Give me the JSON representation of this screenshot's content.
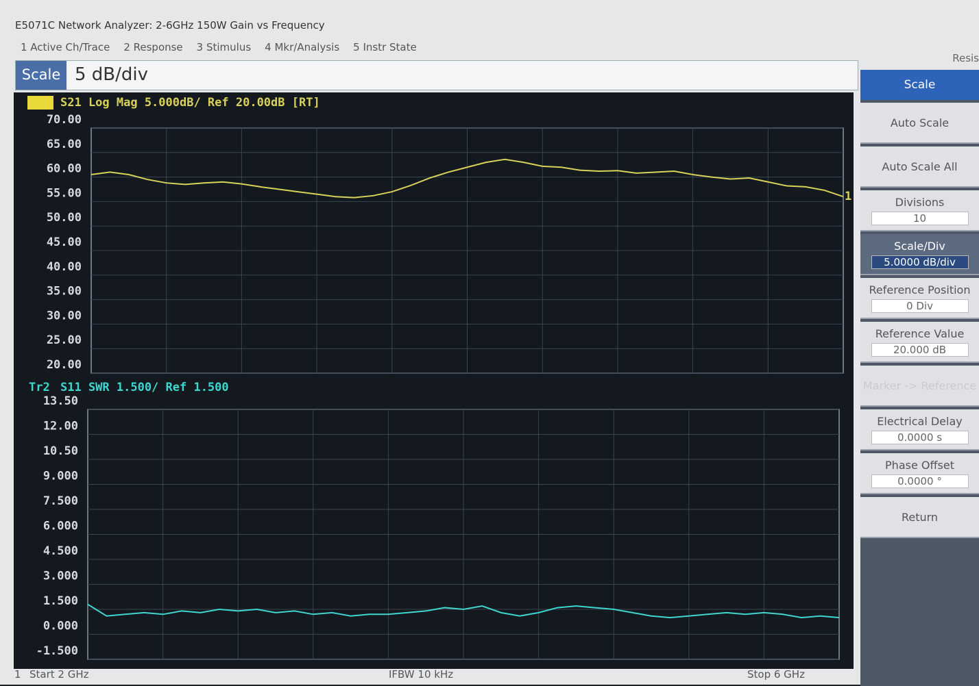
{
  "window_title": "E5071C Network Analyzer: 2-6GHz 150W Gain vs Frequency",
  "menu": [
    "1 Active Ch/Trace",
    "2 Response",
    "3 Stimulus",
    "4 Mkr/Analysis",
    "5 Instr State"
  ],
  "menu_overflow": "Resis",
  "entry": {
    "label": "Scale",
    "value": "5 dB/div"
  },
  "softkeys": {
    "title": "Scale",
    "keys": [
      {
        "label": "Auto Scale"
      },
      {
        "label": "Auto Scale All"
      },
      {
        "label": "Divisions",
        "value": "10"
      },
      {
        "label": "Scale/Div",
        "value": "5.0000 dB/div",
        "active": true
      },
      {
        "label": "Reference Position",
        "value": "0 Div"
      },
      {
        "label": "Reference Value",
        "value": "20.000 dB"
      },
      {
        "label": "Marker -> Reference",
        "enabled": false
      },
      {
        "label": "Electrical Delay",
        "value": "0.0000 s"
      },
      {
        "label": "Phase Offset",
        "value": "0.0000 °"
      },
      {
        "label": "Return"
      }
    ]
  },
  "status": {
    "channel": "1",
    "start": "Start 2 GHz",
    "ifbw": "IFBW 10 kHz",
    "stop": "Stop 6 GHz"
  },
  "chart_data": [
    {
      "type": "line",
      "trace_id": "Tr1",
      "trace_label": "S21 Log Mag 5.000dB/ Ref 20.00dB [RT]",
      "marker_label": "1",
      "color": "#d8d25a",
      "grid": true,
      "xlim": [
        2,
        6
      ],
      "x": [
        2.0,
        2.1,
        2.2,
        2.3,
        2.4,
        2.5,
        2.6,
        2.7,
        2.8,
        2.9,
        3.0,
        3.1,
        3.2,
        3.3,
        3.4,
        3.5,
        3.6,
        3.7,
        3.8,
        3.9,
        4.0,
        4.1,
        4.2,
        4.3,
        4.4,
        4.5,
        4.6,
        4.7,
        4.8,
        4.9,
        5.0,
        5.1,
        5.2,
        5.3,
        5.4,
        5.5,
        5.6,
        5.7,
        5.8,
        5.9,
        6.0
      ],
      "values": [
        60.5,
        61,
        60.5,
        59.5,
        58.8,
        58.5,
        58.8,
        59,
        58.6,
        58,
        57.5,
        57,
        56.5,
        56,
        55.8,
        56.2,
        57,
        58.3,
        59.8,
        61,
        62,
        63,
        63.6,
        63,
        62.2,
        62,
        61.4,
        61.2,
        61.3,
        60.8,
        61,
        61.2,
        60.5,
        60,
        59.6,
        59.8,
        59,
        58.2,
        58,
        57.3,
        56
      ],
      "ylim": [
        20,
        70
      ],
      "yticks": [
        {
          "value": 70,
          "label": "70.00"
        },
        {
          "value": 65,
          "label": "65.00"
        },
        {
          "value": 60,
          "label": "60.00"
        },
        {
          "value": 55,
          "label": "55.00"
        },
        {
          "value": 50,
          "label": "50.00"
        },
        {
          "value": 45,
          "label": "45.00"
        },
        {
          "value": 40,
          "label": "40.00"
        },
        {
          "value": 35,
          "label": "35.00"
        },
        {
          "value": 30,
          "label": "30.00"
        },
        {
          "value": 25,
          "label": "25.00"
        },
        {
          "value": 20,
          "label": "20.00"
        }
      ]
    },
    {
      "type": "line",
      "trace_id": "Tr2",
      "trace_label": "S11 SWR 1.500/ Ref 1.500",
      "color": "#3fd6d0",
      "grid": true,
      "xlim": [
        2,
        6
      ],
      "x": [
        2.0,
        2.1,
        2.2,
        2.3,
        2.4,
        2.5,
        2.6,
        2.7,
        2.8,
        2.9,
        3.0,
        3.1,
        3.2,
        3.3,
        3.4,
        3.5,
        3.6,
        3.7,
        3.8,
        3.9,
        4.0,
        4.1,
        4.2,
        4.3,
        4.4,
        4.5,
        4.6,
        4.7,
        4.8,
        4.9,
        5.0,
        5.1,
        5.2,
        5.3,
        5.4,
        5.5,
        5.6,
        5.7,
        5.8,
        5.9,
        6.0
      ],
      "values": [
        1.8,
        1.1,
        1.2,
        1.3,
        1.2,
        1.4,
        1.3,
        1.5,
        1.4,
        1.5,
        1.3,
        1.4,
        1.2,
        1.3,
        1.1,
        1.2,
        1.2,
        1.3,
        1.4,
        1.6,
        1.5,
        1.7,
        1.3,
        1.1,
        1.3,
        1.6,
        1.7,
        1.6,
        1.5,
        1.3,
        1.1,
        1.0,
        1.1,
        1.2,
        1.3,
        1.2,
        1.3,
        1.2,
        1.0,
        1.1,
        1.0
      ],
      "ylim": [
        -1.5,
        13.5
      ],
      "yticks": [
        {
          "value": 13.5,
          "label": "13.50"
        },
        {
          "value": 12,
          "label": "12.00"
        },
        {
          "value": 10.5,
          "label": "10.50"
        },
        {
          "value": 9,
          "label": "9.000"
        },
        {
          "value": 7.5,
          "label": "7.500"
        },
        {
          "value": 6,
          "label": "6.000"
        },
        {
          "value": 4.5,
          "label": "4.500"
        },
        {
          "value": 3,
          "label": "3.000"
        },
        {
          "value": 1.5,
          "label": "1.500"
        },
        {
          "value": 0,
          "label": "0.000"
        },
        {
          "value": -1.5,
          "label": "-1.500"
        }
      ]
    }
  ]
}
